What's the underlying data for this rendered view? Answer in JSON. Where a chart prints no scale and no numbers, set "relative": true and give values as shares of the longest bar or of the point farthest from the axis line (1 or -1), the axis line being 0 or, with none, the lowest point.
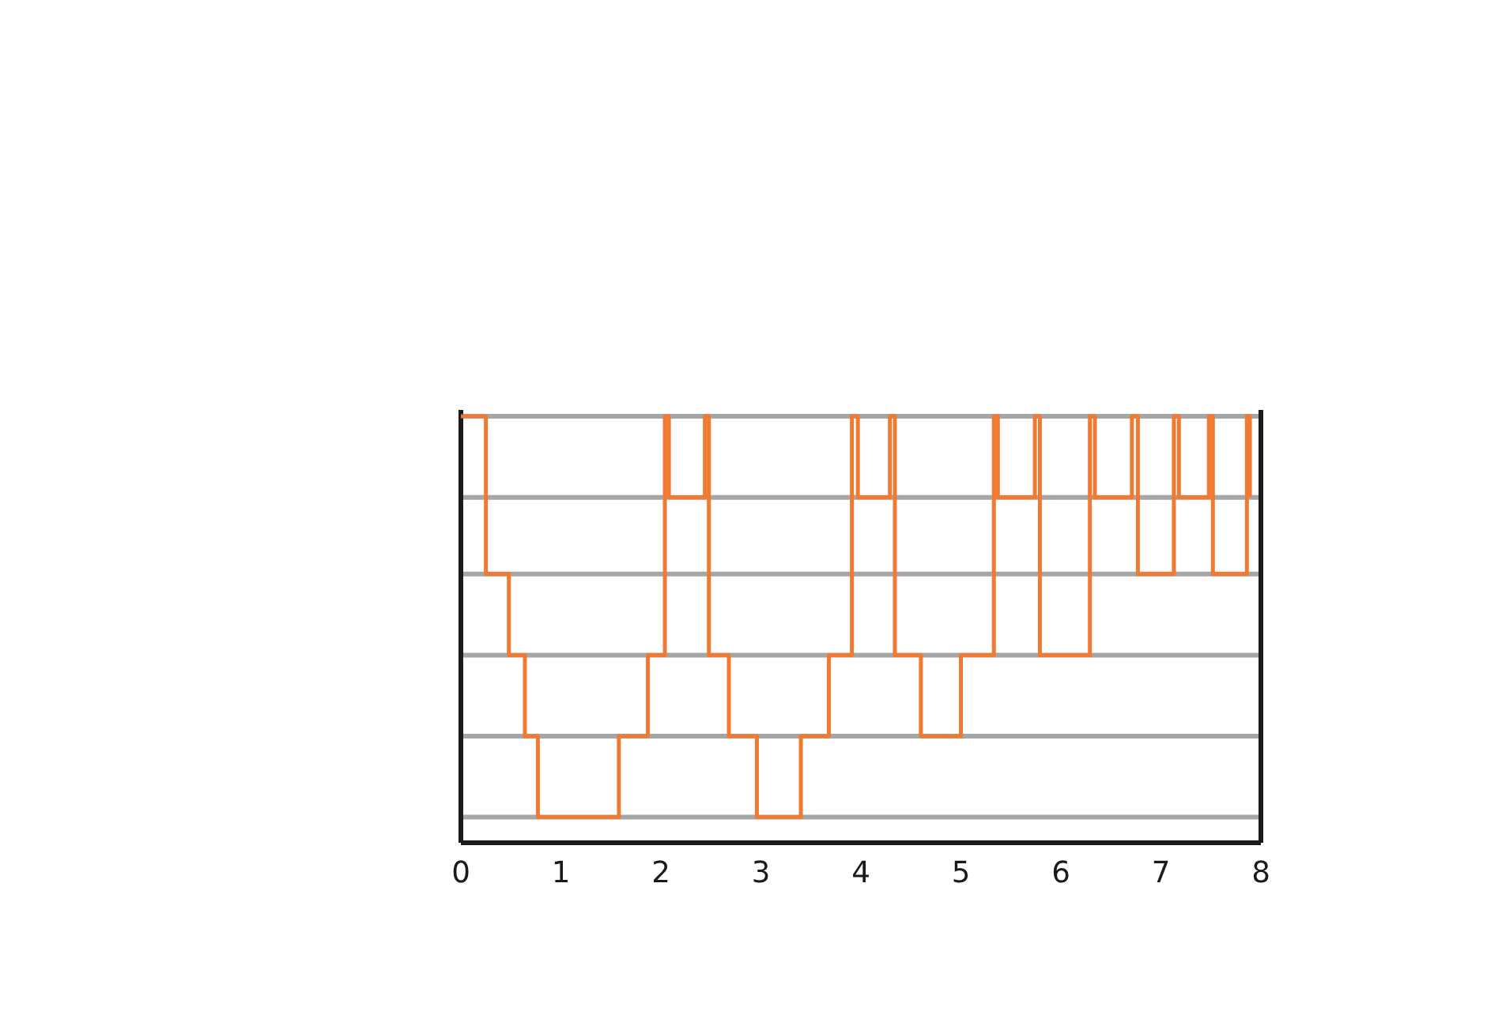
{
  "chart_data": {
    "type": "step",
    "relative": true,
    "grid": "y",
    "marker": "none",
    "line_style": "solid",
    "xlim": [
      0,
      8
    ],
    "xticks": [
      0,
      1,
      2,
      3,
      4,
      5,
      6,
      7,
      8
    ],
    "series": [
      {
        "color": "#f07a32",
        "x": [
          0,
          0.25,
          0.48,
          0.64,
          0.77,
          1.58,
          1.87,
          2.04,
          2.08,
          2.44,
          2.48,
          2.68,
          2.96,
          3.4,
          3.68,
          3.91,
          3.97,
          4.29,
          4.34,
          4.6,
          5.0,
          5.33,
          5.37,
          5.74,
          5.79,
          6.29,
          6.34,
          6.71,
          6.77,
          7.13,
          7.18,
          7.48,
          7.52,
          7.86,
          7.89
        ],
        "values": [
          1,
          0.63,
          0.44,
          0.25,
          0.06,
          0.25,
          0.44,
          1,
          0.81,
          1,
          0.44,
          0.25,
          0.06,
          0.25,
          0.44,
          1,
          0.81,
          1,
          0.44,
          0.25,
          0.44,
          1,
          0.81,
          1,
          0.44,
          1,
          0.81,
          1,
          0.63,
          1,
          0.81,
          1,
          0.63,
          1,
          0.81
        ]
      }
    ]
  }
}
